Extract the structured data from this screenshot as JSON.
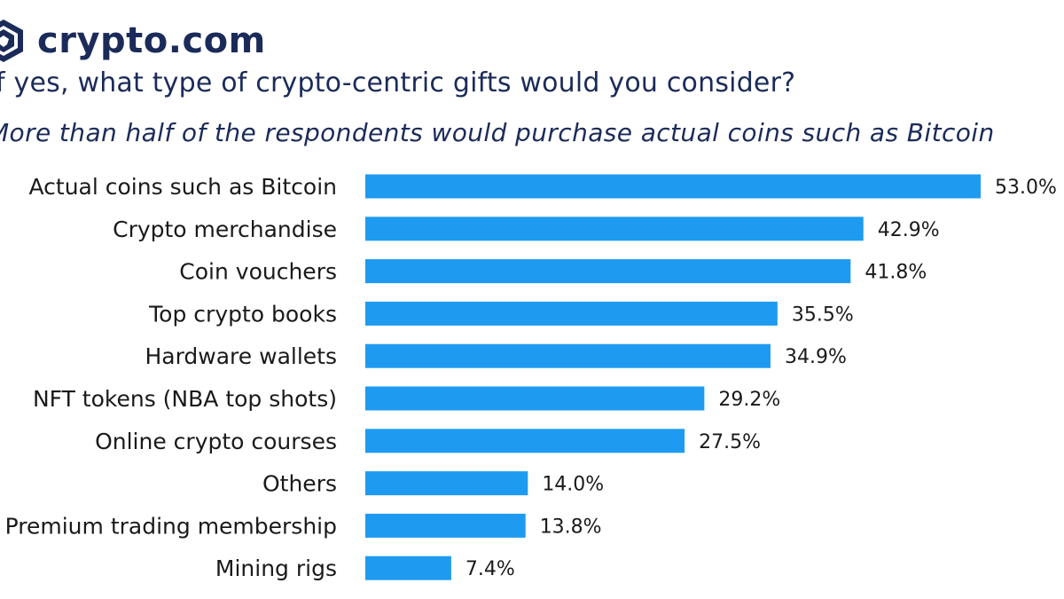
{
  "brand": {
    "name": "crypto.com",
    "color": "#1b2b59"
  },
  "header": {
    "question": "If yes, what type of crypto-centric gifts would you consider?",
    "subtitle": "More than half of the respondents would purchase actual coins such as Bitcoin"
  },
  "chart_data": {
    "type": "bar",
    "orientation": "horizontal",
    "title": "If yes, what type of crypto-centric gifts would you consider?",
    "subtitle": "More than half of the respondents would purchase actual coins such as Bitcoin",
    "xlabel": "",
    "ylabel": "",
    "xlim": [
      0,
      53
    ],
    "grid": false,
    "bar_color": "#1e9bf0",
    "categories": [
      "Actual coins such as Bitcoin",
      "Crypto merchandise",
      "Coin vouchers",
      "Top crypto books",
      "Hardware wallets",
      "NFT tokens (NBA top shots)",
      "Online crypto courses",
      "Others",
      "Premium trading membership",
      "Mining rigs"
    ],
    "values": [
      53.0,
      42.9,
      41.8,
      35.5,
      34.9,
      29.2,
      27.5,
      14.0,
      13.8,
      7.4
    ],
    "value_labels": [
      "53.0%",
      "42.9%",
      "41.8%",
      "35.5%",
      "34.9%",
      "29.2%",
      "27.5%",
      "14.0%",
      "13.8%",
      "7.4%"
    ]
  }
}
